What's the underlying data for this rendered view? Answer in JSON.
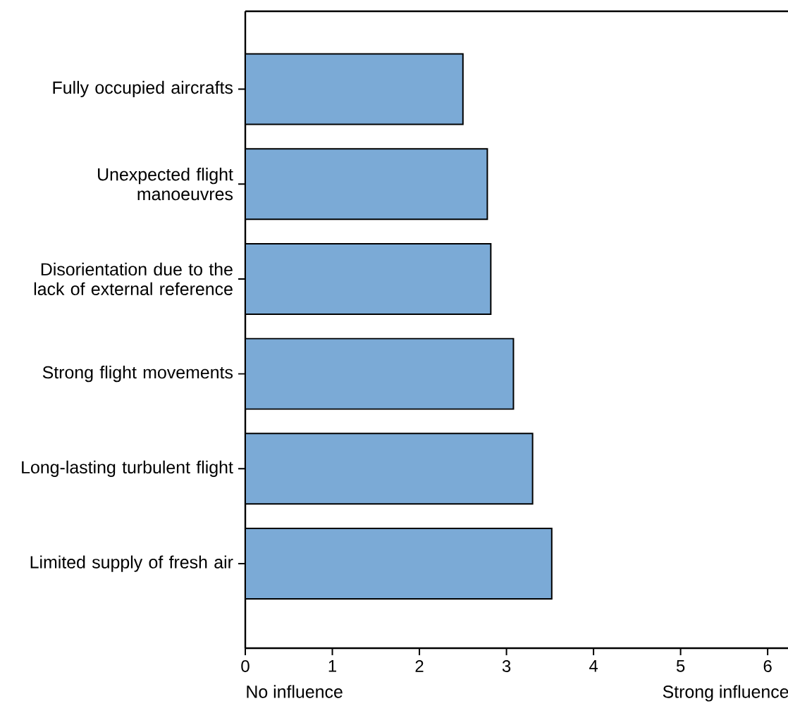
{
  "chart_data": {
    "type": "bar",
    "orientation": "horizontal",
    "categories": [
      "Fully occupied aircrafts",
      "Unexpected flight manoeuvres",
      "Disorientation due to the lack of external reference",
      "Strong flight movements",
      "Long-lasting turbulent flight",
      "Limited supply of fresh air"
    ],
    "values": [
      2.5,
      2.78,
      2.82,
      3.08,
      3.3,
      3.52
    ],
    "color": "#7baad6",
    "xlim": [
      0,
      6.25
    ],
    "xticks": [
      0,
      1,
      2,
      3,
      4,
      5,
      6
    ],
    "annotations": [
      "No influence",
      "Strong influence"
    ],
    "grid": false
  }
}
